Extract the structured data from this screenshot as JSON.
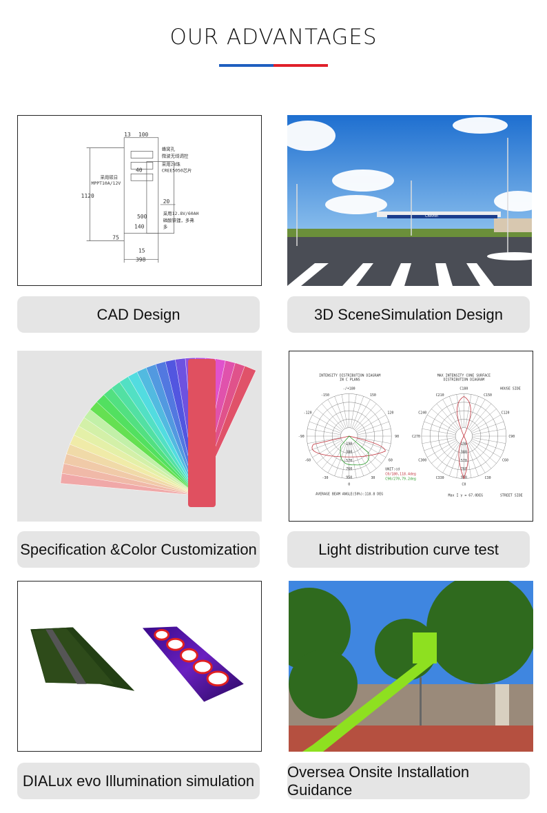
{
  "header": {
    "title": "OUR ADVANTAGES",
    "accent_colors": [
      "#1f5fbf",
      "#e0202a"
    ]
  },
  "cad": {
    "dims": [
      "13",
      "100",
      "40",
      "1120",
      "20",
      "500",
      "140",
      "75",
      "15",
      "398"
    ],
    "notes": [
      "蜂窝孔",
      "微波无线调控",
      "采用28珠",
      "CREE5050芯片",
      "采用硕日",
      "MPPT10A/12V",
      "采用12.8V/60AH",
      "磷酸铁锂，多弗",
      "多"
    ]
  },
  "photometric": {
    "left_title": [
      "INTENSITY DISTRIBUTION DIAGRAM",
      "IN C PLANS"
    ],
    "left_angles": [
      "-/+180",
      "-150",
      "150",
      "-120",
      "120",
      "-90",
      "90",
      "-60",
      "60",
      "-30",
      "30",
      "0"
    ],
    "rings": [
      "190",
      "380",
      "570",
      "760",
      "950"
    ],
    "legend": [
      "UNIT:cd",
      "C0/180,118.4deg",
      "C90/270,79.2deg"
    ],
    "left_footer": "AVERAGE BEAM ANGLE(50%):118.8 DEG",
    "right_title": [
      "MAX INTENSITY CONE SURFACE",
      "DISTRIBUTION DIAGRAM"
    ],
    "right_angles": [
      "C180",
      "C210",
      "C150",
      "C240",
      "C120",
      "C270",
      "C90",
      "C300",
      "C60",
      "C330",
      "C30",
      "C0"
    ],
    "house_side": "HOUSE SIDE",
    "street_side": "STREET SIDE",
    "right_footer": "Max I γ = 67.0DEG",
    "station_sign": "Chevron"
  },
  "captions": [
    "CAD Design",
    "3D SceneSimulation Design",
    "Specification &Color Customization",
    "Light distribution curve test",
    "DIALux evo Illumination simulation",
    "Oversea Onsite Installation Guidance"
  ]
}
